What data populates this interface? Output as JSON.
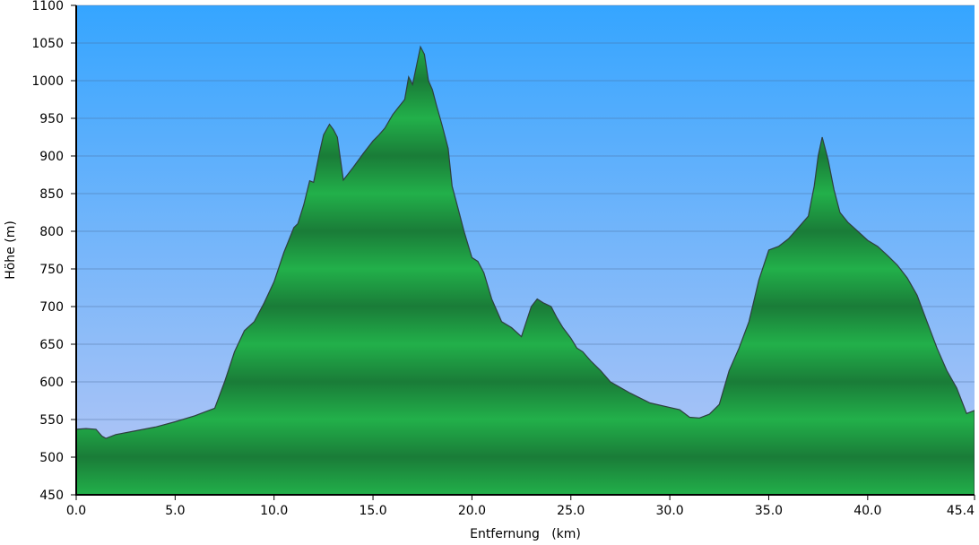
{
  "chart_data": {
    "type": "area",
    "title": "",
    "xlabel": "Entfernung   (km)",
    "ylabel": "Höhe (m)",
    "xlim": [
      0,
      45.4
    ],
    "ylim": [
      450,
      1100
    ],
    "x_ticks": [
      0,
      5,
      10,
      15,
      20,
      25,
      30,
      35,
      40,
      45.4
    ],
    "x_tick_labels": [
      "0.0",
      "5.0",
      "10.0",
      "15.0",
      "20.0",
      "25.0",
      "30.0",
      "35.0",
      "40.0",
      "45.4"
    ],
    "y_ticks": [
      450,
      500,
      550,
      600,
      650,
      700,
      750,
      800,
      850,
      900,
      950,
      1000,
      1050,
      1100
    ],
    "y_tick_labels": [
      "450",
      "500",
      "550",
      "600",
      "650",
      "700",
      "750",
      "800",
      "850",
      "900",
      "950",
      "1000",
      "1050",
      "1100"
    ],
    "grid": true,
    "colors": {
      "sky_top": "#35a5ff",
      "sky_bottom": "#b8c7f5",
      "fill_light": "#22b04a",
      "fill_dark": "#1a7c38",
      "outline": "#2f3f3f"
    },
    "series": [
      {
        "x": [
          0,
          0.5,
          1.0,
          1.3,
          1.5,
          2.0,
          3.0,
          4.0,
          5.0,
          6.0,
          6.5,
          7.0,
          7.5,
          8.0,
          8.5,
          9.0,
          9.5,
          10.0,
          10.5,
          11.0,
          11.2,
          11.5,
          11.8,
          12.0,
          12.3,
          12.5,
          12.8,
          13.0,
          13.2,
          13.5,
          14.0,
          14.5,
          15.0,
          15.3,
          15.6,
          16.0,
          16.3,
          16.6,
          16.8,
          17.0,
          17.2,
          17.4,
          17.6,
          17.8,
          18.0,
          18.2,
          18.5,
          18.8,
          19.0,
          19.3,
          19.6,
          20.0,
          20.3,
          20.6,
          21.0,
          21.5,
          22.0,
          22.5,
          23.0,
          23.3,
          23.6,
          24.0,
          24.3,
          24.6,
          25.0,
          25.3,
          25.6,
          26.0,
          26.5,
          27.0,
          28.0,
          29.0,
          30.0,
          30.5,
          31.0,
          31.5,
          32.0,
          32.5,
          33.0,
          33.5,
          34.0,
          34.5,
          35.0,
          35.5,
          36.0,
          36.5,
          37.0,
          37.3,
          37.5,
          37.7,
          38.0,
          38.3,
          38.6,
          39.0,
          39.5,
          40.0,
          40.5,
          41.0,
          41.5,
          42.0,
          42.5,
          43.0,
          43.5,
          44.0,
          44.5,
          45.0,
          45.4
        ],
        "y": [
          537,
          538,
          537,
          528,
          525,
          530,
          535,
          540,
          547,
          555,
          560,
          565,
          600,
          640,
          668,
          680,
          705,
          733,
          772,
          805,
          810,
          835,
          867,
          865,
          905,
          928,
          942,
          935,
          925,
          868,
          885,
          903,
          920,
          928,
          937,
          955,
          965,
          975,
          1005,
          995,
          1020,
          1045,
          1035,
          1000,
          988,
          968,
          940,
          910,
          860,
          830,
          800,
          765,
          760,
          745,
          710,
          680,
          672,
          660,
          700,
          710,
          705,
          700,
          685,
          672,
          658,
          645,
          640,
          628,
          615,
          600,
          585,
          572,
          566,
          563,
          553,
          552,
          557,
          570,
          615,
          645,
          680,
          735,
          775,
          780,
          790,
          805,
          820,
          860,
          900,
          925,
          895,
          855,
          825,
          812,
          800,
          788,
          780,
          768,
          755,
          738,
          715,
          680,
          645,
          615,
          592,
          558,
          562
        ]
      }
    ]
  }
}
